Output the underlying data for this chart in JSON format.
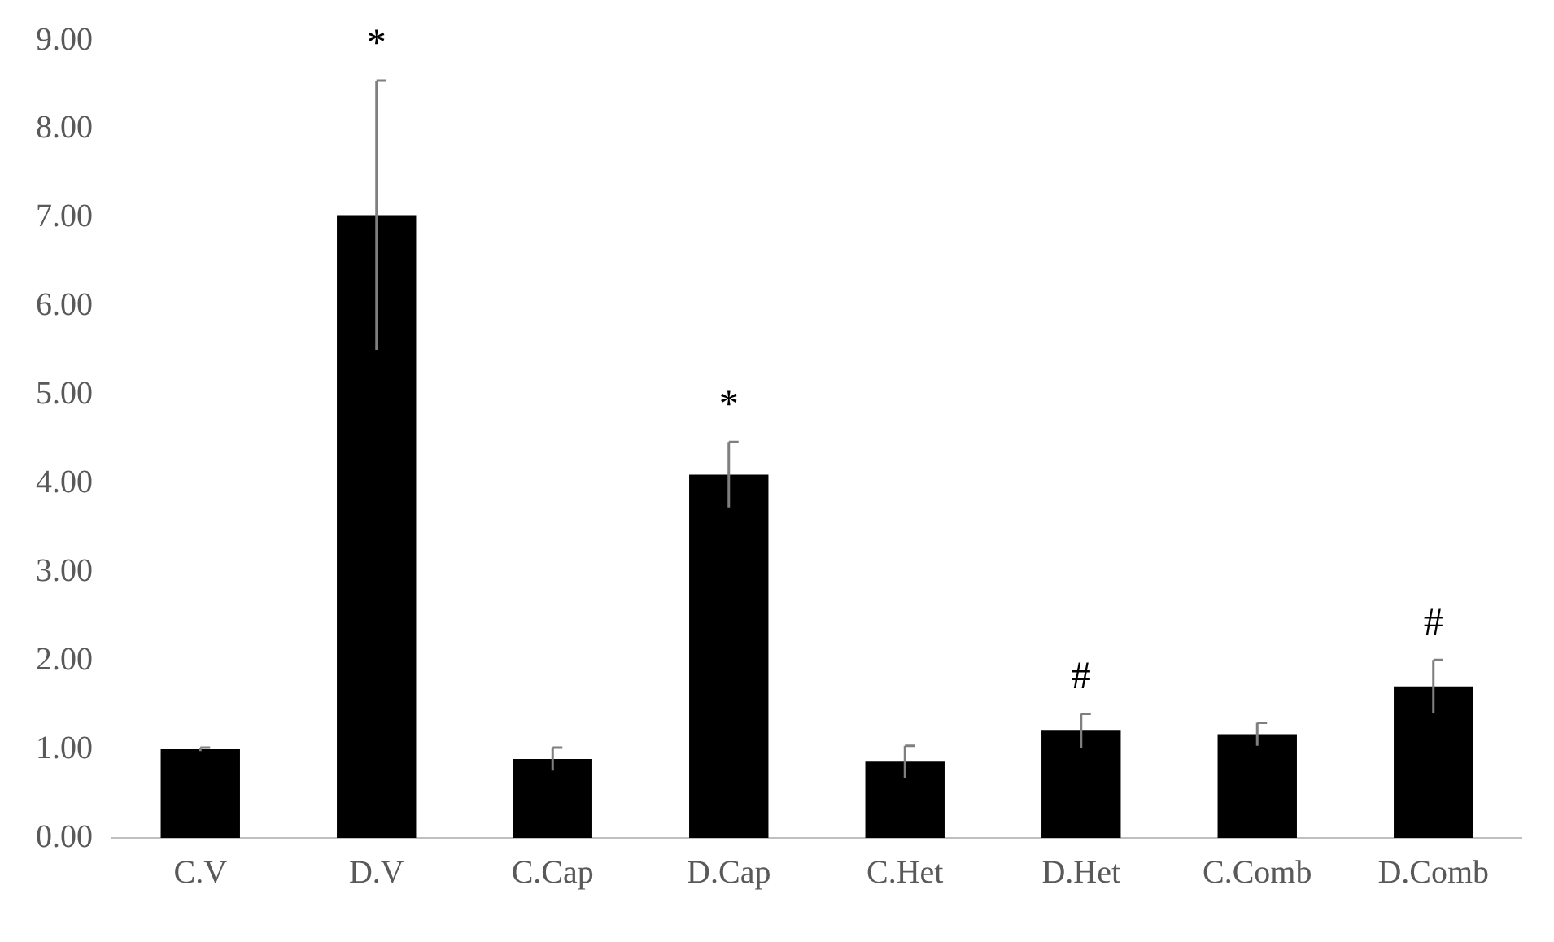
{
  "chart_data": {
    "type": "bar",
    "categories": [
      "C.V",
      "D.V",
      "C.Cap",
      "D.Cap",
      "C.Het",
      "D.Het",
      "C.Comb",
      "D.Comb"
    ],
    "values": [
      1.0,
      7.03,
      0.89,
      4.1,
      0.86,
      1.21,
      1.17,
      1.71
    ],
    "errors": [
      0.02,
      1.52,
      0.13,
      0.37,
      0.18,
      0.19,
      0.13,
      0.3
    ],
    "color": "#000000",
    "ylim": [
      0,
      9
    ],
    "yticks": [
      {
        "value": 0,
        "label": "0.00"
      },
      {
        "value": 1,
        "label": "1.00"
      },
      {
        "value": 2,
        "label": "2.00"
      },
      {
        "value": 3,
        "label": "3.00"
      },
      {
        "value": 4,
        "label": "4.00"
      },
      {
        "value": 5,
        "label": "5.00"
      },
      {
        "value": 6,
        "label": "6.00"
      },
      {
        "value": 7,
        "label": "7.00"
      },
      {
        "value": 8,
        "label": "8.00"
      },
      {
        "value": 9,
        "label": "9.00"
      }
    ],
    "annotations": [
      {
        "text": "*",
        "x": "D.V",
        "y": 8.55
      },
      {
        "text": "*",
        "x": "D.Cap",
        "y": 4.47
      },
      {
        "text": "#",
        "x": "D.Het",
        "y": 1.4
      },
      {
        "text": "#",
        "x": "D.Comb",
        "y": 2.01
      }
    ],
    "grid": false,
    "legend": false
  }
}
